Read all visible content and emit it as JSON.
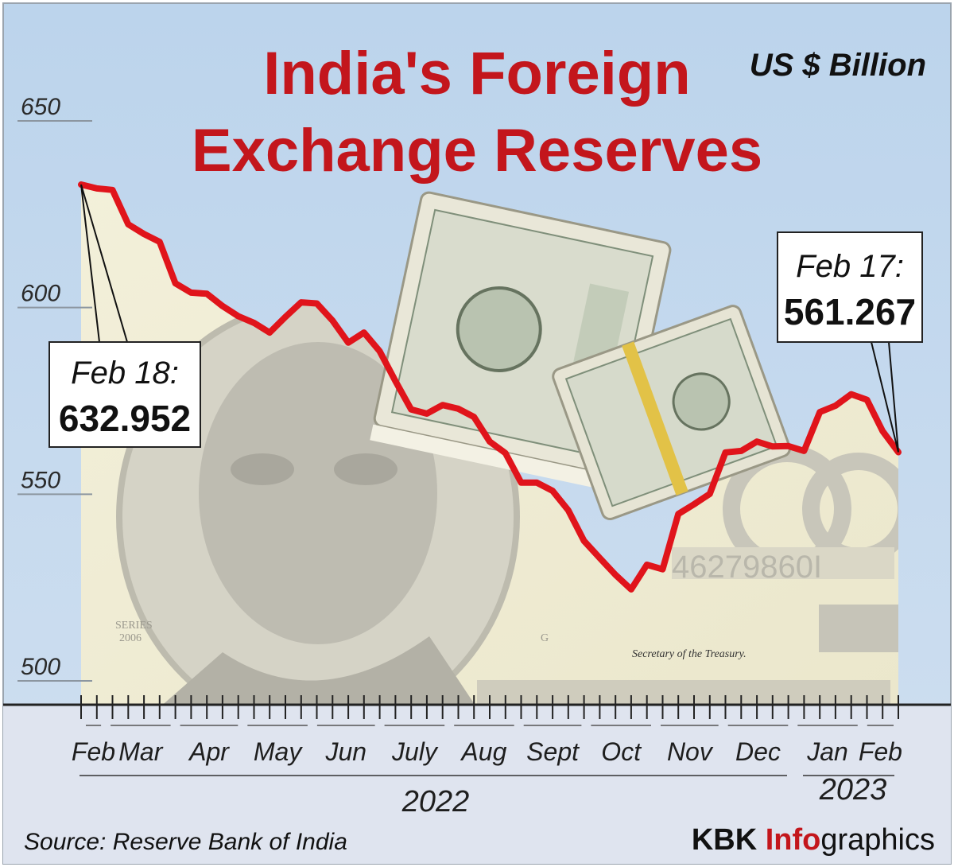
{
  "chart_data": {
    "type": "line",
    "title": "India's Foreign Exchange Reserves",
    "title_lines": [
      "India's Foreign",
      "Exchange Reserves"
    ],
    "unit": "US $ Billion",
    "ylim": [
      500,
      650
    ],
    "yticks": [
      500,
      550,
      600,
      650
    ],
    "grid": false,
    "x_month_labels": [
      "Feb",
      "Mar",
      "Apr",
      "May",
      "Jun",
      "July",
      "Aug",
      "Sept",
      "Oct",
      "Nov",
      "Dec",
      "Jan",
      "Feb"
    ],
    "year_labels": [
      "2022",
      "2023"
    ],
    "line_color": "#e0141b",
    "series": [
      {
        "x": [
          "2022-02-18",
          "2022-02-25",
          "2022-03-04",
          "2022-03-11",
          "2022-03-18",
          "2022-03-25",
          "2022-04-01",
          "2022-04-08",
          "2022-04-15",
          "2022-04-22",
          "2022-04-29",
          "2022-05-06",
          "2022-05-13",
          "2022-05-20",
          "2022-05-27",
          "2022-06-03",
          "2022-06-10",
          "2022-06-17",
          "2022-06-24",
          "2022-07-01",
          "2022-07-08",
          "2022-07-15",
          "2022-07-22",
          "2022-07-29",
          "2022-08-05",
          "2022-08-12",
          "2022-08-19",
          "2022-08-26",
          "2022-09-02",
          "2022-09-09",
          "2022-09-16",
          "2022-09-23",
          "2022-09-30",
          "2022-10-07",
          "2022-10-14",
          "2022-10-21",
          "2022-10-28",
          "2022-11-04",
          "2022-11-11",
          "2022-11-18",
          "2022-11-25",
          "2022-12-02",
          "2022-12-09",
          "2022-12-16",
          "2022-12-23",
          "2022-12-30",
          "2023-01-06",
          "2023-01-13",
          "2023-01-20",
          "2023-01-27",
          "2023-02-03",
          "2023-02-10",
          "2023-02-17"
        ],
        "values": [
          632.952,
          631.9,
          631.5,
          622.3,
          619.7,
          617.6,
          606.5,
          604.0,
          603.7,
          600.4,
          597.7,
          595.9,
          593.3,
          597.5,
          601.4,
          601.1,
          596.5,
          590.6,
          593.3,
          588.3,
          580.3,
          572.7,
          571.6,
          573.9,
          572.9,
          570.7,
          564.1,
          561.0,
          553.1,
          553.1,
          550.9,
          545.7,
          537.5,
          532.9,
          528.4,
          524.5,
          531.1,
          529.9,
          544.7,
          547.3,
          550.1,
          561.2,
          561.6,
          564.1,
          562.8,
          562.9,
          561.6,
          572.0,
          573.7,
          576.8,
          575.3,
          566.9,
          561.267
        ]
      }
    ],
    "annotations": [
      {
        "date_label": "Feb 18:",
        "value_label": "632.952"
      },
      {
        "date_label": "Feb 17:",
        "value_label": "561.267"
      }
    ],
    "source": "Source: Reserve Bank of India",
    "brand": {
      "part1": "KBK ",
      "part2": "Info",
      "part3": "graphics"
    }
  }
}
